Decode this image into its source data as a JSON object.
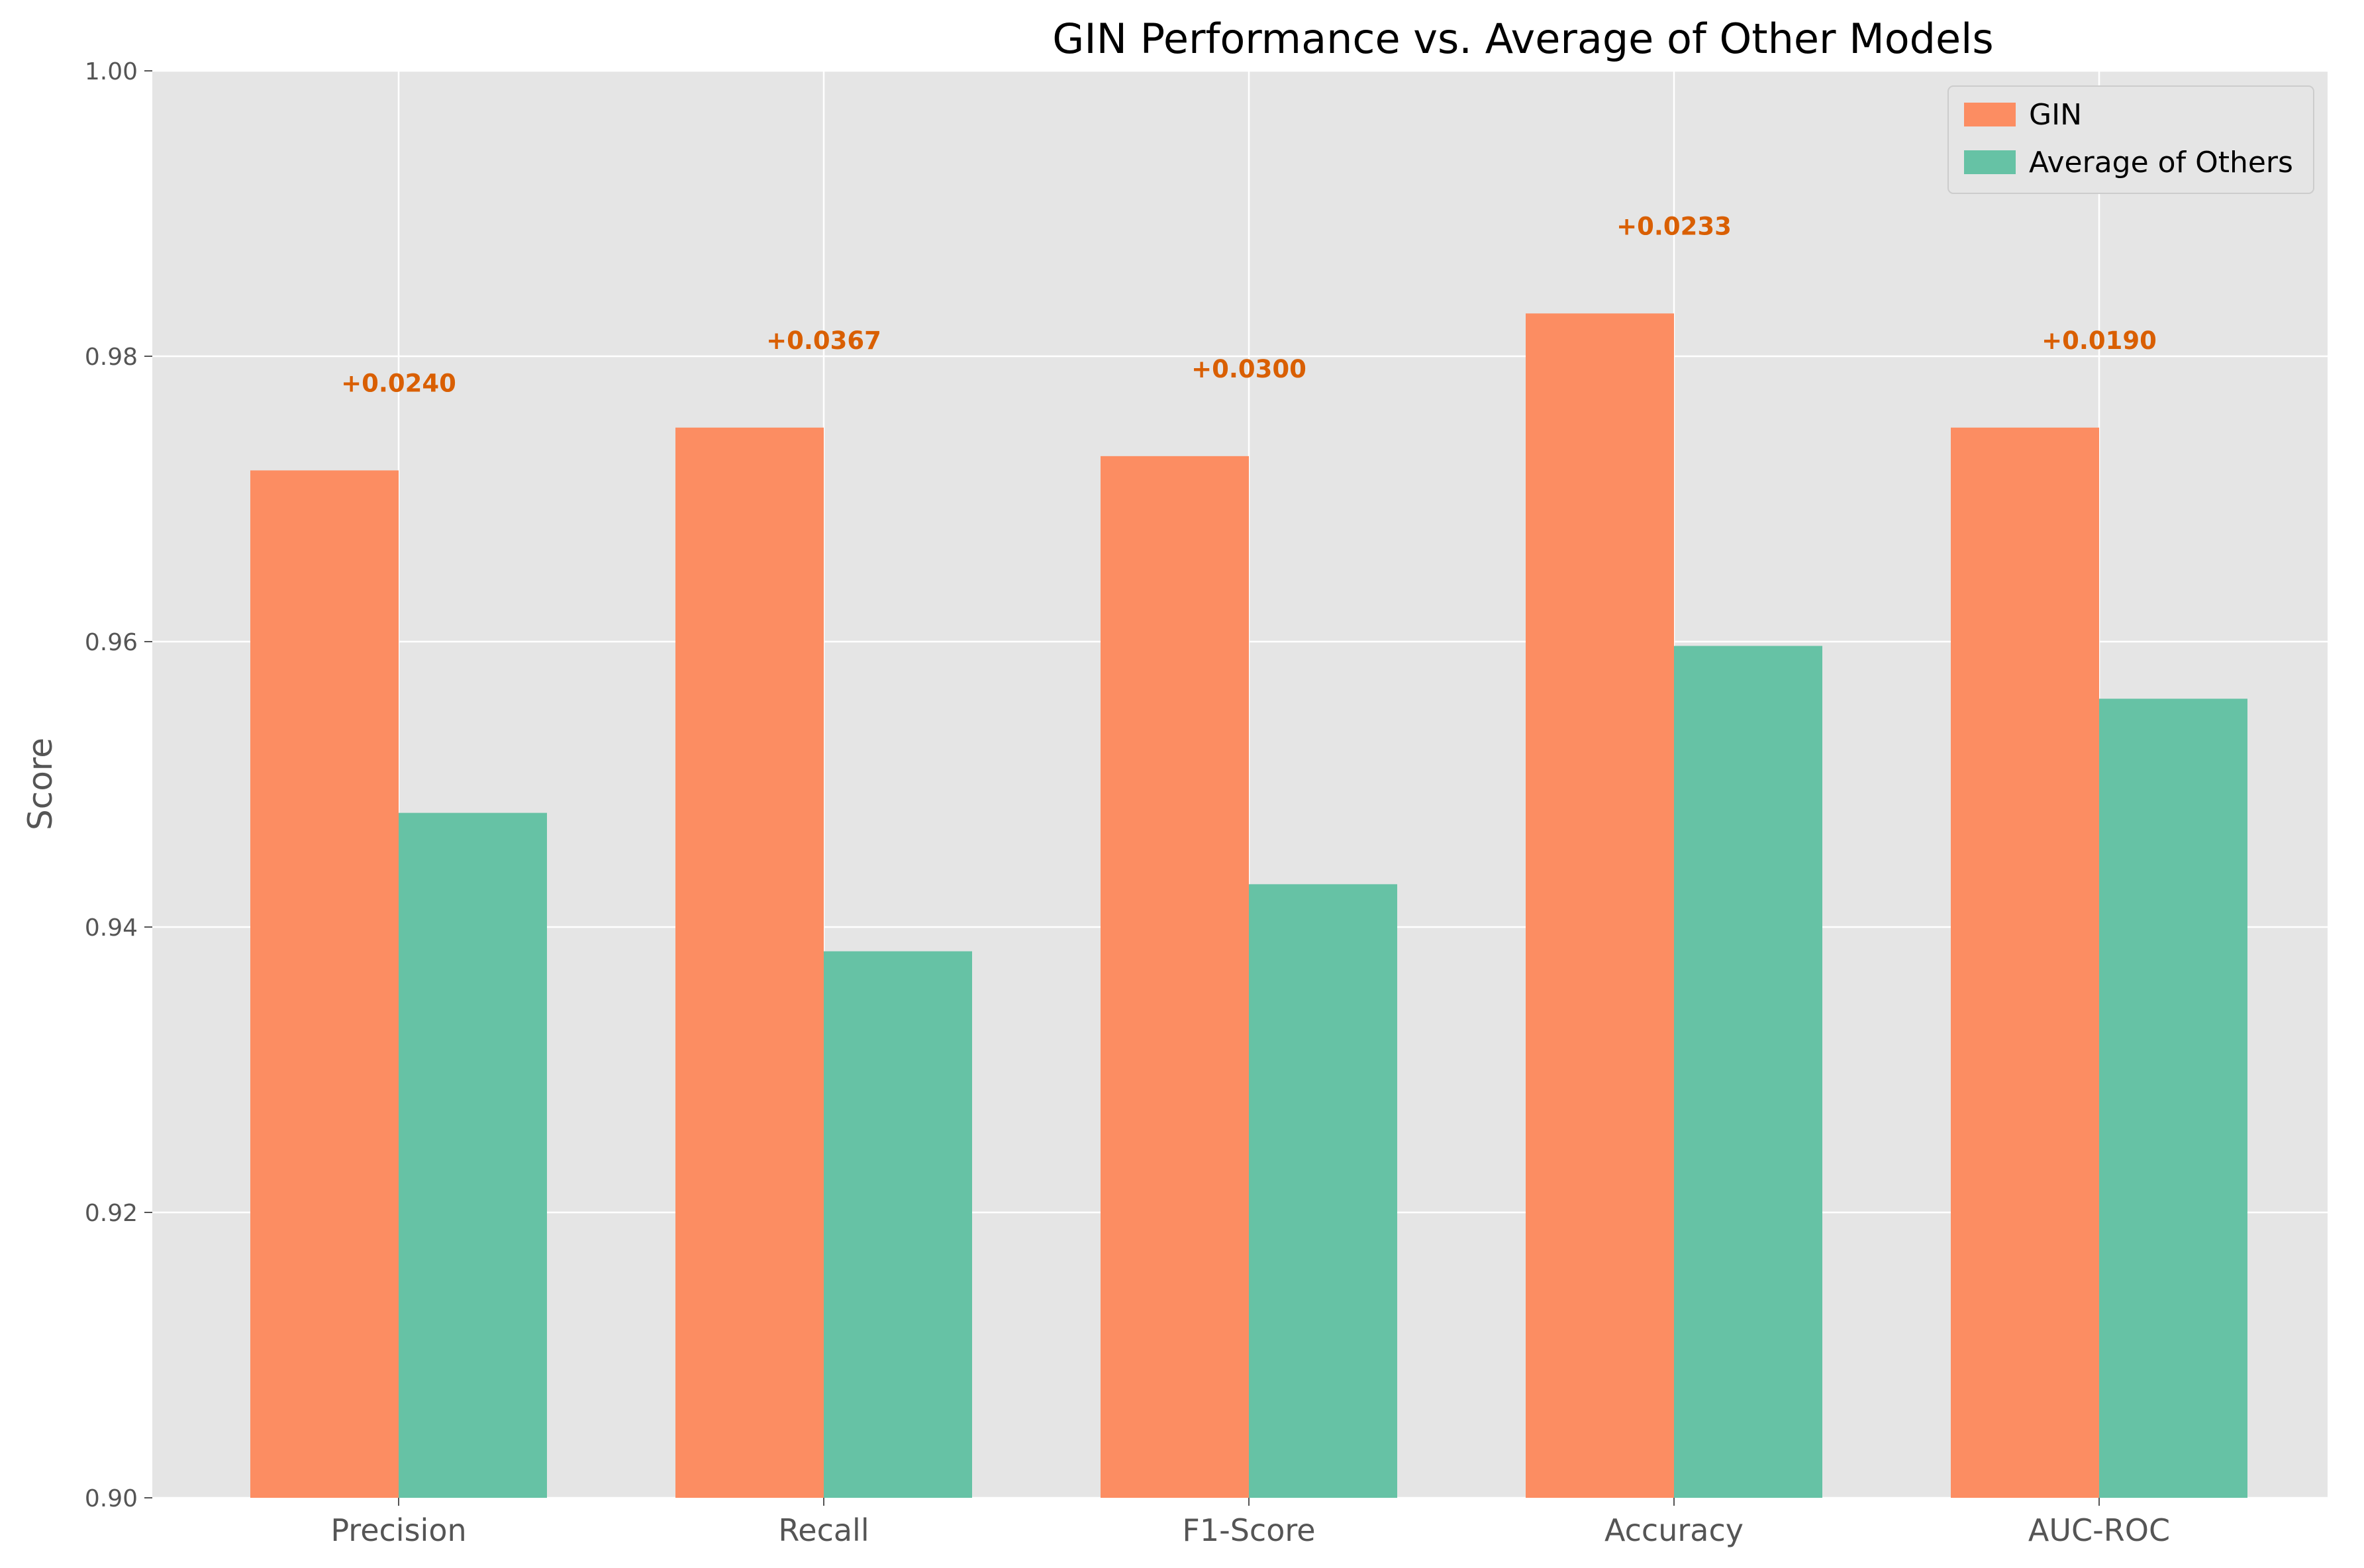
{
  "chart_data": {
    "type": "bar",
    "title": "GIN Performance vs. Average of Other Models",
    "xlabel": "",
    "ylabel": "Score",
    "ylim": [
      0.9,
      1.0
    ],
    "yticks": [
      0.9,
      0.92,
      0.94,
      0.96,
      0.98,
      1.0
    ],
    "ytick_labels": [
      "0.90",
      "0.92",
      "0.94",
      "0.96",
      "0.98",
      "1.00"
    ],
    "categories": [
      "Precision",
      "Recall",
      "F1-Score",
      "Accuracy",
      "AUC-ROC"
    ],
    "series": [
      {
        "name": "GIN",
        "color": "#fc8d62",
        "values": [
          0.972,
          0.975,
          0.973,
          0.983,
          0.975
        ]
      },
      {
        "name": "Average of Others",
        "color": "#66c2a5",
        "values": [
          0.948,
          0.9383,
          0.943,
          0.9597,
          0.956
        ]
      }
    ],
    "annotations": {
      "color": "#d95f02",
      "labels": [
        "+0.0240",
        "+0.0367",
        "+0.0300",
        "+0.0233",
        "+0.0190"
      ]
    },
    "grid": true,
    "legend": {
      "position": "top-right",
      "entries": [
        "GIN",
        "Average of Others"
      ]
    },
    "style": {
      "plot_background": "#e5e5e5",
      "grid_color": "#ffffff"
    }
  }
}
